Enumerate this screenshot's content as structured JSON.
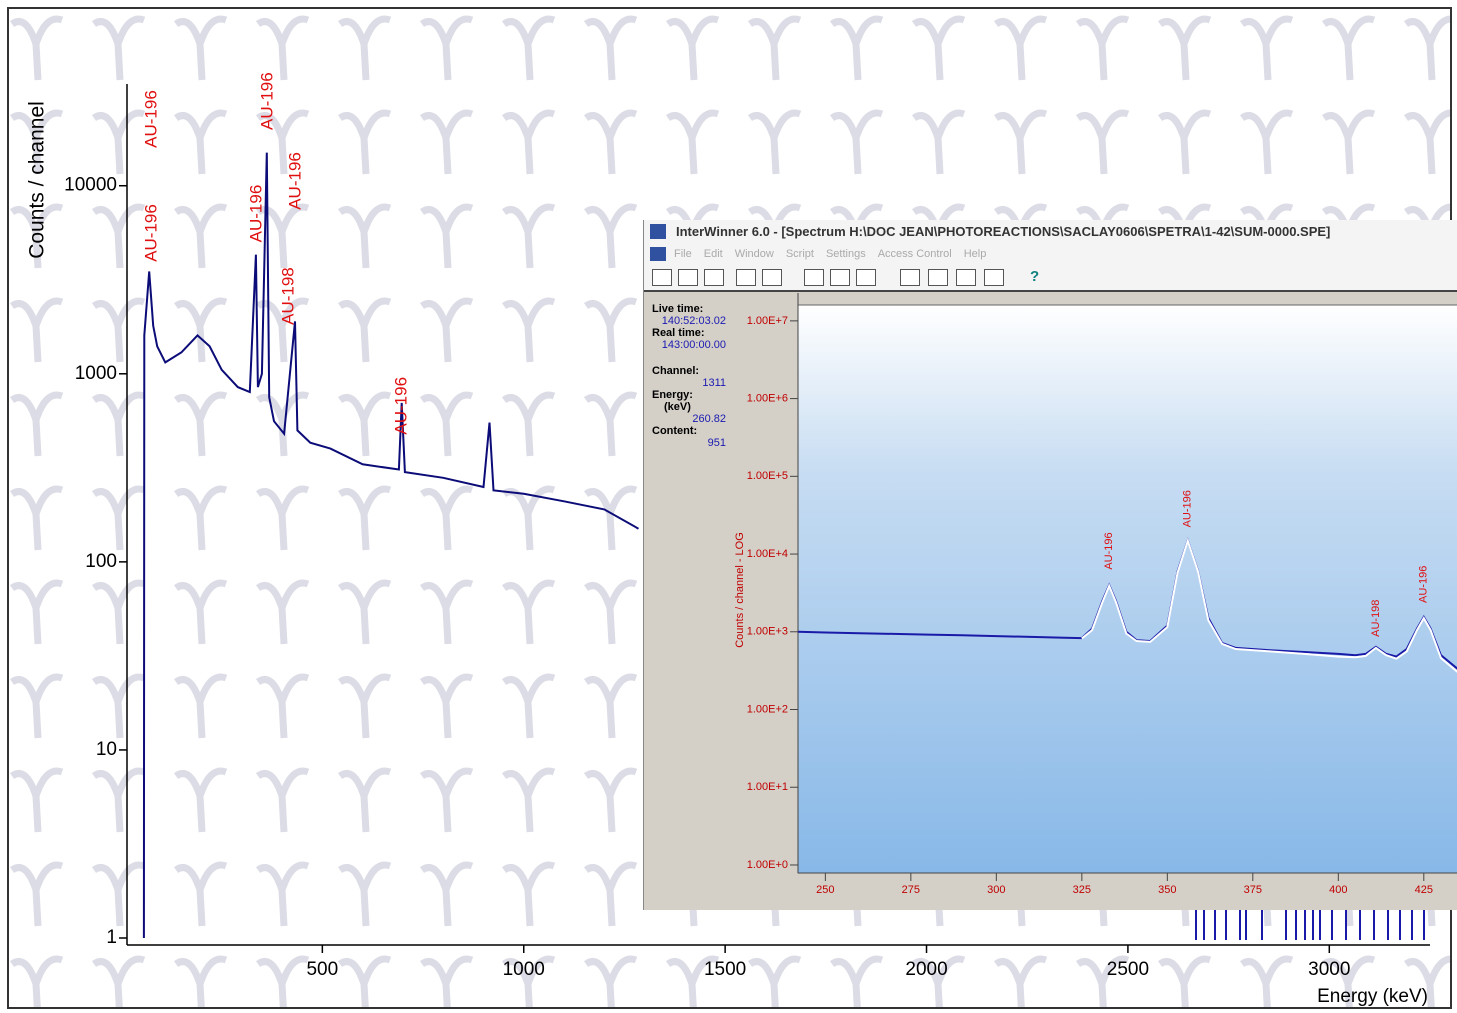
{
  "chart_data": [
    {
      "type": "line",
      "x_label": "Energy (keV)",
      "y_label": "Counts / channel",
      "log_y": true,
      "xlim": [
        15,
        3250
      ],
      "xticks": [
        500,
        1000,
        1500,
        2000,
        2500,
        3000
      ],
      "ylim": [
        1,
        30000
      ],
      "yticks": [
        1,
        10,
        100,
        1000,
        10000
      ],
      "x": [
        57,
        58,
        70,
        80,
        90,
        110,
        150,
        190,
        220,
        250,
        290,
        320,
        335,
        340,
        350,
        362,
        368,
        380,
        405,
        432,
        438,
        470,
        520,
        600,
        690,
        697,
        705,
        800,
        900,
        915,
        925,
        1000,
        1100,
        1200,
        1285
      ],
      "series": [
        {
          "color": "#0c0c78",
          "values": [
            1,
            1600,
            3500,
            1800,
            1400,
            1150,
            1300,
            1600,
            1400,
            1050,
            850,
            800,
            4300,
            850,
            1000,
            15000,
            750,
            560,
            480,
            1900,
            500,
            430,
            400,
            330,
            310,
            700,
            300,
            280,
            250,
            550,
            240,
            230,
            210,
            190,
            150
          ]
        }
      ],
      "annotations": [
        {
          "text": "AU-196",
          "x": 77,
          "y": 15900
        },
        {
          "text": "AU-196",
          "x": 77,
          "y": 3940
        },
        {
          "text": "AU-196",
          "x": 365,
          "y": 19800
        },
        {
          "text": "AU-196",
          "x": 338,
          "y": 5000
        },
        {
          "text": "AU-196",
          "x": 435,
          "y": 7450
        },
        {
          "text": "AU-198",
          "x": 417,
          "y": 1820
        },
        {
          "text": "AU-196",
          "x": 698,
          "y": 475
        }
      ]
    },
    {
      "type": "line",
      "y_label": "Counts / channel - LOG",
      "log_y": true,
      "xlim": [
        242,
        435
      ],
      "xticks": [
        250,
        275,
        300,
        325,
        350,
        375,
        400,
        425
      ],
      "ylim": [
        0.8,
        16000000
      ],
      "yticks": [
        {
          "value": 1,
          "label": "1.00E+0"
        },
        {
          "value": 10,
          "label": "1.00E+1"
        },
        {
          "value": 100,
          "label": "1.00E+2"
        },
        {
          "value": 1000,
          "label": "1.00E+3"
        },
        {
          "value": 10000,
          "label": "1.00E+4"
        },
        {
          "value": 100000,
          "label": "1.00E+5"
        },
        {
          "value": 1000000,
          "label": "1.00E+6"
        },
        {
          "value": 10000000,
          "label": "1.00E+7"
        }
      ],
      "x": [
        242,
        250,
        260,
        270,
        280,
        290,
        300,
        310,
        320,
        325,
        328,
        331,
        333,
        335,
        338,
        341,
        345,
        350,
        353,
        356,
        359,
        362,
        366,
        370,
        380,
        390,
        400,
        405,
        408,
        411,
        414,
        417,
        420,
        423,
        425,
        427,
        430,
        435
      ],
      "series": [
        {
          "color": "#1a1aa8",
          "values": [
            1000,
            980,
            960,
            940,
            920,
            900,
            880,
            860,
            840,
            830,
            1100,
            2500,
            4000,
            2500,
            1000,
            780,
            760,
            1200,
            6000,
            15000,
            6000,
            1500,
            720,
            620,
            580,
            550,
            520,
            500,
            520,
            640,
            520,
            480,
            600,
            1100,
            1550,
            1100,
            500,
            330
          ]
        },
        {
          "color": "#ffffff",
          "values": [
            null,
            null,
            null,
            null,
            null,
            null,
            null,
            null,
            null,
            820,
            1050,
            2400,
            3900,
            2400,
            950,
            760,
            740,
            1150,
            5800,
            14800,
            5900,
            1400,
            700,
            600,
            560,
            520,
            480,
            470,
            490,
            620,
            500,
            450,
            560,
            1050,
            1500,
            1050,
            460,
            300
          ]
        }
      ],
      "annotations": [
        {
          "text": "AU-196",
          "x": 333,
          "y": 6300
        },
        {
          "text": "AU-196",
          "x": 356,
          "y": 22000
        },
        {
          "text": "AU-198",
          "x": 411,
          "y": 860
        },
        {
          "text": "AU-196",
          "x": 425,
          "y": 2350
        }
      ]
    }
  ],
  "window": {
    "title": "InterWinner 6.0 - [Spectrum H:\\DOC JEAN\\PHOTOREACTIONS\\SACLAY0606\\SPETRA\\1-42\\SUM-0000.SPE]",
    "menu": [
      "File",
      "Edit",
      "Window",
      "Script",
      "Settings",
      "Access Control",
      "Help"
    ],
    "help_button": "?",
    "info": [
      {
        "label": "Live time:",
        "value": "140:52:03.02"
      },
      {
        "label": "Real time:",
        "value": "143:00:00.00"
      },
      {
        "label": "Channel:",
        "value": "1311"
      },
      {
        "label": "Energy:",
        "unit": "(keV)",
        "value": "260.82"
      },
      {
        "label": "Content:",
        "value": "951"
      }
    ]
  }
}
